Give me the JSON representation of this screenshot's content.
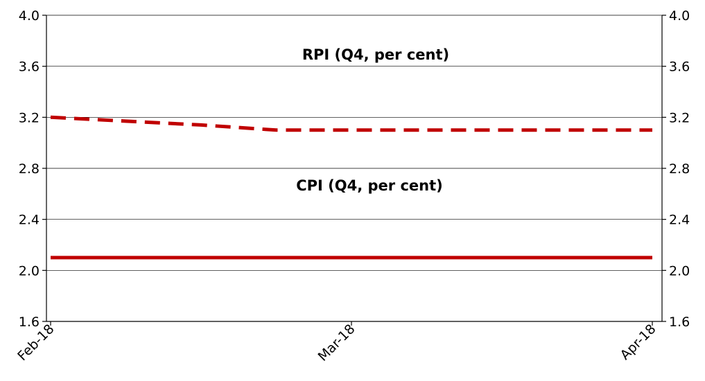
{
  "chart_data": {
    "type": "line",
    "x": [
      "Feb-18",
      "Mar-18",
      "Apr-18"
    ],
    "ylim": [
      1.6,
      4.0
    ],
    "y_ticks": [
      "1.6",
      "2.0",
      "2.4",
      "2.8",
      "3.2",
      "3.6",
      "4.0"
    ],
    "y_right_ticks": [
      "1.6",
      "2.0",
      "2.4",
      "2.8",
      "3.2",
      "3.6",
      "4.0"
    ],
    "grid": true,
    "series": [
      {
        "name": "RPI (Q4, per cent)",
        "style": "dashed",
        "color": "#c00000",
        "points": [
          [
            0,
            3.2
          ],
          [
            0.25,
            3.17
          ],
          [
            0.5,
            3.14
          ],
          [
            0.75,
            3.1
          ],
          [
            1.0,
            3.1
          ],
          [
            1.5,
            3.1
          ],
          [
            2.0,
            3.1
          ]
        ]
      },
      {
        "name": "CPI (Q4, per cent)",
        "style": "solid",
        "color": "#c00000",
        "points": [
          [
            0,
            2.1
          ],
          [
            1.0,
            2.1
          ],
          [
            2.0,
            2.1
          ]
        ]
      }
    ]
  }
}
